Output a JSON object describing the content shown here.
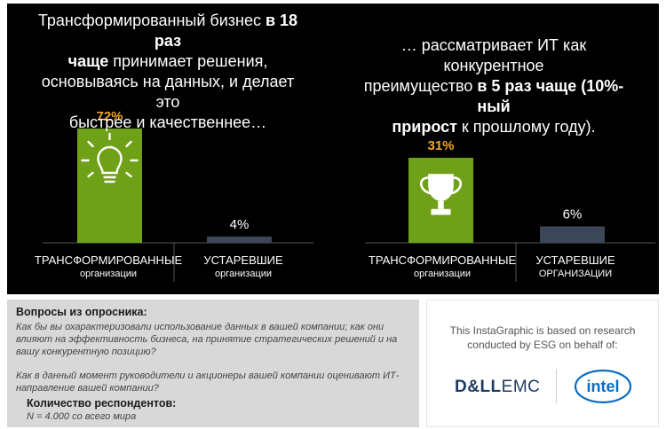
{
  "left_panel": {
    "headline": {
      "p1": "Трансформированный бизнес ",
      "b1": "в 18 раз",
      "b2": "чаще",
      "p2": " принимает решения,",
      "p3": "основываясь на данных,  и делает это",
      "p4": "быстрее и качественнее…"
    },
    "categories": [
      {
        "label": "ТРАНСФОРМИРОВАННЫЕ",
        "sub": "организации"
      },
      {
        "label": "УСТАРЕВШИЕ",
        "sub": "организации"
      }
    ],
    "icon": "lightbulb-icon"
  },
  "right_panel": {
    "headline": {
      "p1": "… рассматривает ИТ как конкурентное",
      "p2": "преимущество ",
      "b1": "в 5 раз чаще (10%-ный",
      "b2": "прирост",
      "p3": " к прошлому году)."
    },
    "categories": [
      {
        "label": "ТРАНСФОРМИРОВАННЫЕ",
        "sub": "организации"
      },
      {
        "label": "УСТАРЕВШИЕ",
        "sub": "ОРГАНИЗАЦИИ"
      }
    ],
    "icon": "trophy-icon"
  },
  "chart_data": [
    {
      "type": "bar",
      "categories": [
        "ТРАНСФОРМИРОВАННЫЕ организации",
        "УСТАРЕВШИЕ организации"
      ],
      "values": [
        72,
        4
      ],
      "value_labels": [
        "72%",
        "4%"
      ],
      "ylim": [
        0,
        72
      ]
    },
    {
      "type": "bar",
      "categories": [
        "ТРАНСФОРМИРОВАННЫЕ организации",
        "УСТАРЕВШИЕ ОРГАНИЗАЦИИ"
      ],
      "values": [
        31,
        6
      ],
      "value_labels": [
        "31%",
        "6%"
      ],
      "ylim": [
        0,
        31
      ]
    }
  ],
  "colors": {
    "background": "#000000",
    "accent_bar": "#6fa118",
    "legacy_bar": "#3b4656",
    "label_orange": "#f5a623",
    "intel_blue": "#0a6cc0",
    "dell_blue": "#1d3a5e"
  },
  "survey": {
    "title": "Вопросы из опросника:",
    "q1": "Как бы вы охарактеризовали использование данных в вашей компании; как они влияют на эффективность бизнеса, на принятие стратегических решений и на вашу конкурентную позицию?",
    "q2": "Как в данный момент руководители и акционеры вашей компании оценивают ИТ-направление вашей компании?",
    "respondents_title": "Количество респондентов:",
    "respondents": "N = 4.000 со всего мира"
  },
  "credit": {
    "text": "This InstaGraphic is based on research conducted by ESG on behalf of:",
    "dell_bold": "D&LL",
    "dell_rest": "EMC",
    "intel": "intel"
  }
}
